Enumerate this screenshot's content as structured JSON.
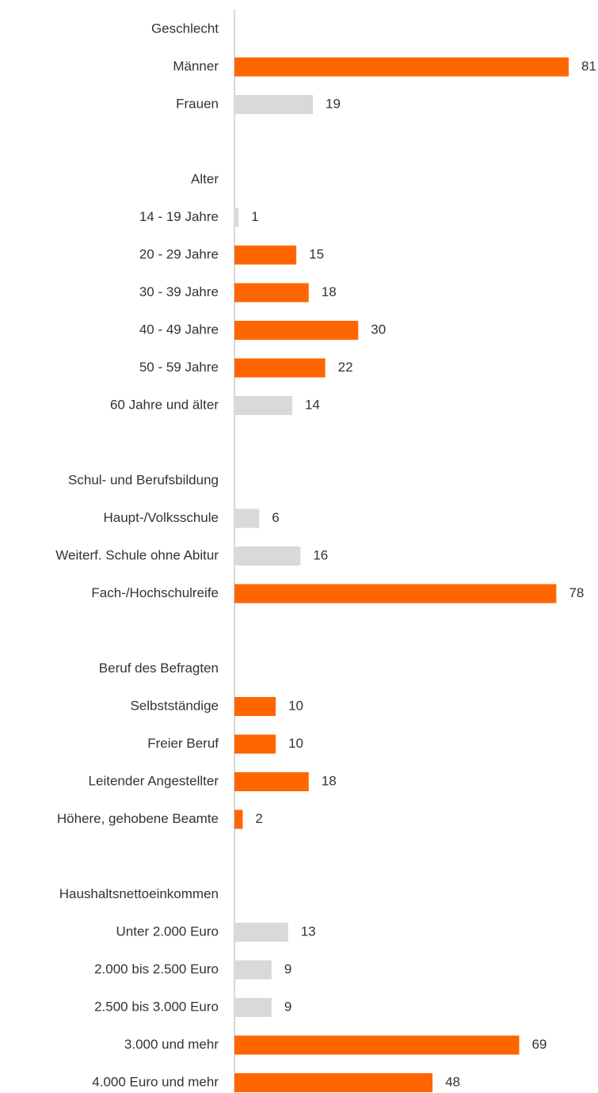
{
  "chart_data": {
    "type": "bar",
    "orientation": "horizontal",
    "groups": [
      {
        "name": "Geschlecht",
        "categories": [
          "Männer",
          "Frauen"
        ],
        "values": [
          81,
          19
        ],
        "colors": [
          "#ff6600",
          "#d9d9d9"
        ]
      },
      {
        "name": "Alter",
        "categories": [
          "14 - 19 Jahre",
          "20 - 29 Jahre",
          "30 - 39 Jahre",
          "40 - 49 Jahre",
          "50 - 59 Jahre",
          "60 Jahre und älter"
        ],
        "values": [
          1,
          15,
          18,
          30,
          22,
          14
        ],
        "colors": [
          "#d9d9d9",
          "#ff6600",
          "#ff6600",
          "#ff6600",
          "#ff6600",
          "#d9d9d9"
        ]
      },
      {
        "name": "Schul- und Berufsbildung",
        "categories": [
          "Haupt-/Volksschule",
          "Weiterf. Schule ohne Abitur",
          "Fach-/Hochschulreife"
        ],
        "values": [
          6,
          16,
          78
        ],
        "colors": [
          "#d9d9d9",
          "#d9d9d9",
          "#ff6600"
        ]
      },
      {
        "name": "Beruf des Befragten",
        "categories": [
          "Selbstständige",
          "Freier Beruf",
          "Leitender Angestellter",
          "Höhere, gehobene Beamte"
        ],
        "values": [
          10,
          10,
          18,
          2
        ],
        "colors": [
          "#ff6600",
          "#ff6600",
          "#ff6600",
          "#ff6600"
        ]
      },
      {
        "name": "Haushaltsnettoeinkommen",
        "categories": [
          "Unter 2.000 Euro",
          "2.000 bis 2.500 Euro",
          "2.500 bis 3.000 Euro",
          "3.000 und mehr",
          "4.000 Euro und mehr"
        ],
        "values": [
          13,
          9,
          9,
          69,
          48
        ],
        "colors": [
          "#d9d9d9",
          "#d9d9d9",
          "#d9d9d9",
          "#ff6600",
          "#ff6600"
        ]
      }
    ]
  }
}
